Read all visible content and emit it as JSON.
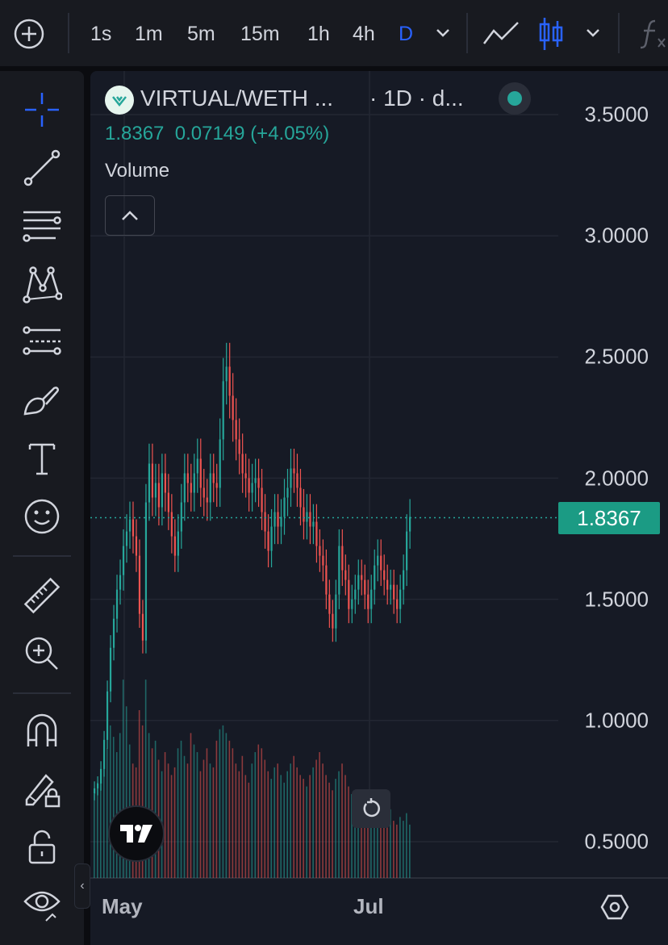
{
  "toolbar": {
    "intervals": [
      "1s",
      "1m",
      "5m",
      "15m",
      "1h",
      "4h",
      "D"
    ],
    "active_interval": "D"
  },
  "legend": {
    "symbol": "VIRTUAL/WETH ...",
    "interval_suffix": "· 1D · d...",
    "last_price": "1.8367",
    "change": "0.07149",
    "change_pct": "(+4.05%)",
    "volume_label": "Volume"
  },
  "colors": {
    "up": "#26a69a",
    "down": "#ef5350",
    "accent": "#2962ff",
    "background": "#161a25"
  },
  "chart_data": {
    "type": "candlestick",
    "ylim": [
      0.35,
      3.68
    ],
    "yticks": [
      "3.5000",
      "3.0000",
      "2.5000",
      "2.0000",
      "1.5000",
      "1.0000",
      "0.5000"
    ],
    "ytick_values": [
      3.5,
      3.0,
      2.5,
      2.0,
      1.5,
      1.0,
      0.5
    ],
    "xticks": [
      "May",
      "Jul"
    ],
    "last_price_label": "1.8367",
    "last_price_value": 1.8367,
    "candles_close": [
      0.72,
      0.74,
      0.8,
      0.92,
      1.12,
      1.3,
      1.42,
      1.54,
      1.6,
      1.72,
      1.78,
      1.83,
      1.76,
      1.68,
      1.44,
      1.33,
      1.9,
      2.06,
      1.92,
      1.98,
      1.88,
      2.02,
      1.94,
      1.86,
      1.76,
      1.68,
      1.78,
      1.9,
      2.02,
      1.98,
      1.94,
      2.02,
      2.08,
      1.96,
      1.92,
      1.9,
      2.02,
      1.98,
      1.96,
      2.16,
      2.4,
      2.46,
      2.34,
      2.24,
      2.16,
      2.1,
      2.02,
      2.0,
      1.94,
      1.98,
      2.0,
      1.96,
      1.86,
      1.78,
      1.7,
      1.8,
      1.86,
      1.8,
      1.84,
      1.92,
      1.96,
      2.04,
      2.02,
      1.96,
      1.88,
      1.82,
      1.86,
      1.8,
      1.82,
      1.72,
      1.68,
      1.64,
      1.52,
      1.44,
      1.38,
      1.52,
      1.72,
      1.62,
      1.58,
      1.46,
      1.5,
      1.54,
      1.6,
      1.58,
      1.52,
      1.46,
      1.54,
      1.64,
      1.68,
      1.62,
      1.58,
      1.54,
      1.56,
      1.5,
      1.46,
      1.54,
      1.62,
      1.78,
      1.84
    ],
    "volume": [
      0.22,
      0.25,
      0.27,
      0.3,
      0.34,
      0.4,
      0.37,
      0.33,
      0.38,
      0.52,
      0.45,
      0.35,
      0.3,
      0.29,
      0.44,
      0.4,
      0.52,
      0.38,
      0.34,
      0.36,
      0.31,
      0.28,
      0.33,
      0.3,
      0.27,
      0.29,
      0.34,
      0.36,
      0.32,
      0.3,
      0.38,
      0.35,
      0.33,
      0.28,
      0.31,
      0.34,
      0.3,
      0.29,
      0.36,
      0.39,
      0.4,
      0.38,
      0.36,
      0.34,
      0.3,
      0.28,
      0.32,
      0.27,
      0.25,
      0.3,
      0.33,
      0.35,
      0.34,
      0.31,
      0.28,
      0.26,
      0.29,
      0.3,
      0.27,
      0.25,
      0.28,
      0.3,
      0.32,
      0.29,
      0.27,
      0.26,
      0.24,
      0.27,
      0.29,
      0.31,
      0.33,
      0.3,
      0.27,
      0.25,
      0.23,
      0.26,
      0.28,
      0.3,
      0.27,
      0.24,
      0.22,
      0.2,
      0.21,
      0.19,
      0.22,
      0.23,
      0.21,
      0.2,
      0.22,
      0.18,
      0.17,
      0.16,
      0.18,
      0.15,
      0.14,
      0.16,
      0.15,
      0.17,
      0.14
    ]
  }
}
